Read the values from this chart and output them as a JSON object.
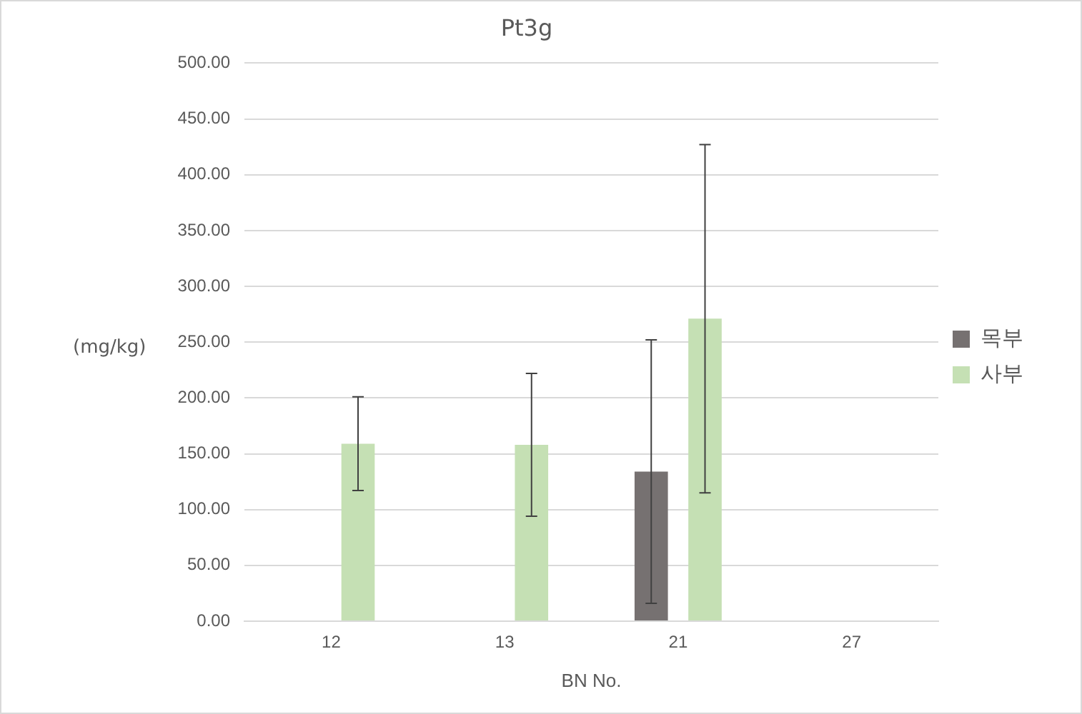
{
  "chart_data": {
    "type": "bar",
    "title": "Pt3g",
    "xlabel": "BN No.",
    "ylabel": "(mg/kg)",
    "categories": [
      "12",
      "13",
      "21",
      "27"
    ],
    "series": [
      {
        "name": "목부",
        "color": "#767171",
        "values": [
          null,
          null,
          134,
          null
        ],
        "errors": [
          null,
          null,
          118,
          null
        ]
      },
      {
        "name": "사부",
        "color": "#c5e0b4",
        "values": [
          159,
          158,
          271,
          null
        ],
        "errors": [
          42,
          64,
          156,
          null
        ]
      }
    ],
    "ylim": [
      0,
      500
    ],
    "yticks": [
      {
        "value": 0,
        "label": "0.00"
      },
      {
        "value": 50,
        "label": "50.00"
      },
      {
        "value": 100,
        "label": "100.00"
      },
      {
        "value": 150,
        "label": "150.00"
      },
      {
        "value": 200,
        "label": "200.00"
      },
      {
        "value": 250,
        "label": "250.00"
      },
      {
        "value": 300,
        "label": "300.00"
      },
      {
        "value": 350,
        "label": "350.00"
      },
      {
        "value": 400,
        "label": "400.00"
      },
      {
        "value": 450,
        "label": "450.00"
      },
      {
        "value": 500,
        "label": "500.00"
      }
    ],
    "grid": "y",
    "legend": "right"
  }
}
